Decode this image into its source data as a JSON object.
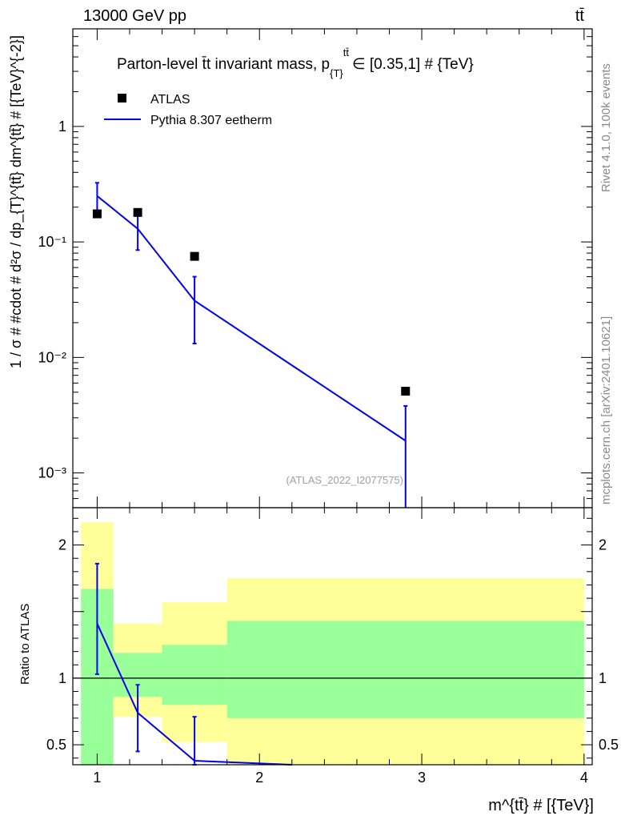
{
  "header": {
    "energy_label": "13000 GeV pp",
    "process_label": "tt̄"
  },
  "side_labels": {
    "rivet": "Rivet 4.1.0,  100k events",
    "site": "mcplots.cern.ch [arXiv:2401.10621]"
  },
  "colors": {
    "data": "#000000",
    "mc": "#0000ee",
    "band_inner": "#99ff99",
    "band_outer": "#ffff99"
  },
  "chart_data": [
    {
      "type": "scatter",
      "panel": "main",
      "title": "Parton-level t̄t invariant mass, p",
      "title_sub": "{T}",
      "title_sup": "tt̄",
      "title_rest": "∈ [0.35,1] # {TeV}",
      "ylabel": "1 / σ # #cdot # d²σ / dp_{T}^{tt̄} dm^{tt̄} # [{TeV}^{-2}]",
      "yscale": "log",
      "ylim": [
        0.0005,
        7
      ],
      "xlim": [
        0.85,
        4.05
      ],
      "ytick_labels": [
        "1",
        "10⁻¹",
        "10⁻²",
        "10⁻³"
      ],
      "watermark": "(ATLAS_2022_I2077575)",
      "legend": {
        "position": "top-left",
        "entries": [
          "ATLAS",
          "Pythia 8.307 eetherm"
        ]
      },
      "series": [
        {
          "name": "ATLAS",
          "style": "markers",
          "x": [
            1.0,
            1.25,
            1.6,
            2.9
          ],
          "y": [
            0.175,
            0.18,
            0.075,
            0.0051
          ]
        },
        {
          "name": "Pythia 8.307 eetherm",
          "style": "line",
          "x": [
            1.0,
            1.25,
            1.6,
            2.9
          ],
          "y": [
            0.25,
            0.13,
            0.031,
            0.0019
          ],
          "yerr_low": [
            0.085,
            0.045,
            0.0178,
            0.00145
          ],
          "yerr_high": [
            0.075,
            0.038,
            0.019,
            0.0019
          ]
        }
      ]
    },
    {
      "type": "scatter",
      "panel": "ratio",
      "ylabel": "Ratio to ATLAS",
      "xlabel": "m^{tt̄} # [{TeV}]",
      "ylim": [
        0.35,
        2.28
      ],
      "xlim": [
        0.85,
        4.05
      ],
      "xtick_labels": [
        "1",
        "2",
        "3",
        "4"
      ],
      "ytick_labels": [
        "0.5",
        "1",
        "2"
      ],
      "reference_line": 1,
      "bands": [
        {
          "x_low": 0.9,
          "x_high": 1.1,
          "inner": [
            0.35,
            1.67
          ],
          "outer": [
            0.35,
            2.17
          ]
        },
        {
          "x_low": 1.1,
          "x_high": 1.4,
          "inner": [
            0.86,
            1.19
          ],
          "outer": [
            0.71,
            1.41
          ]
        },
        {
          "x_low": 1.4,
          "x_high": 1.8,
          "inner": [
            0.8,
            1.25
          ],
          "outer": [
            0.52,
            1.57
          ]
        },
        {
          "x_low": 1.8,
          "x_high": 4.0,
          "inner": [
            0.7,
            1.43
          ],
          "outer": [
            0.35,
            1.75
          ]
        }
      ],
      "series": [
        {
          "name": "Pythia 8.307 eetherm / ATLAS",
          "style": "line",
          "x": [
            1.0,
            1.25,
            1.6,
            2.2
          ],
          "y": [
            1.41,
            0.74,
            0.38,
            0.35
          ],
          "err_x": [
            1.0,
            1.25,
            1.6
          ],
          "yerr_low": [
            0.38,
            0.29,
            0.15
          ],
          "yerr_high": [
            0.45,
            0.21,
            0.33
          ]
        }
      ]
    }
  ]
}
